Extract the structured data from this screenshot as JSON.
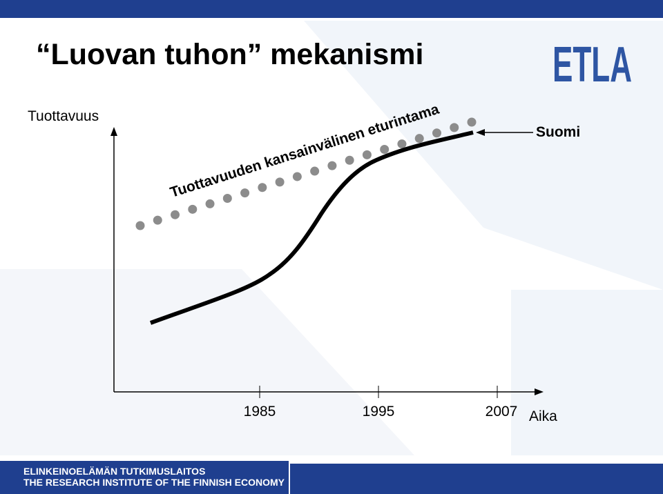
{
  "header": {
    "title": "“Luovan tuhon” mekanismi",
    "logo": "ETLA"
  },
  "diagram": {
    "y_axis_label": "Tuottavuus",
    "x_axis_label": "Aika",
    "x_ticks": [
      "1985",
      "1995",
      "2007"
    ],
    "frontier_label": "Tuottavuuden kansainvälinen eturintama",
    "curve_label": "Suomi"
  },
  "footer": {
    "line1": "ELINKEINOELÄMÄN TUTKIMUSLAITOS",
    "line2": "THE RESEARCH INSTITUTE OF THE FINNISH ECONOMY"
  }
}
